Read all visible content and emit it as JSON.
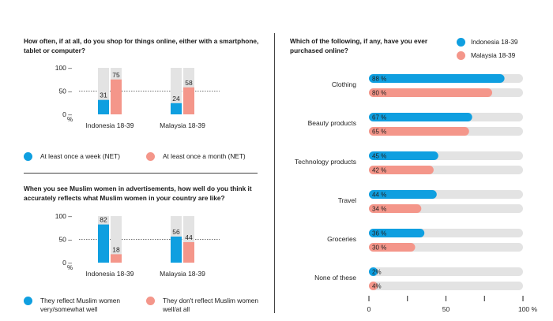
{
  "colors": {
    "indonesia": "#0f9fe0",
    "malaysia": "#f4968a",
    "track": "#e3e3e3"
  },
  "legend_markers": [
    "circle-marker",
    "circle-marker"
  ],
  "chart_data": [
    {
      "type": "bar",
      "title": "How often, if at all, do you shop for things online, either with a smartphone, tablet or computer?",
      "categories": [
        "Indonesia 18-39",
        "Malaysia 18-39"
      ],
      "ylim": [
        0,
        100
      ],
      "yticks": [
        "100",
        "50",
        "0"
      ],
      "yunit": "%",
      "series": [
        {
          "name": "At least once a week (NET)",
          "values": [
            31,
            24
          ]
        },
        {
          "name": "At least once a month (NET)",
          "values": [
            75,
            58
          ]
        }
      ],
      "legend": "bottom"
    },
    {
      "type": "bar",
      "title": "When you see Muslim women in advertisements, how well do you think it accurately reflects what Muslim women in your country are like?",
      "categories": [
        "Indonesia 18-39",
        "Malaysia 18-39"
      ],
      "ylim": [
        0,
        100
      ],
      "yticks": [
        "100",
        "50",
        "0"
      ],
      "yunit": "%",
      "series": [
        {
          "name": "They reflect Muslim women very/somewhat well",
          "values": [
            82,
            56
          ]
        },
        {
          "name": "They don't reflect Muslim women well/at all",
          "values": [
            18,
            44
          ]
        }
      ],
      "legend": "bottom"
    },
    {
      "type": "bar",
      "orientation": "horizontal",
      "title": "Which of the following, if any, have you ever purchased online?",
      "categories": [
        "Clothing",
        "Beauty products",
        "Technology products",
        "Travel",
        "Groceries",
        "None of these"
      ],
      "series": [
        {
          "name": "Indonesia 18-39",
          "values": [
            88,
            67,
            45,
            44,
            36,
            2
          ]
        },
        {
          "name": "Malaysia 18-39",
          "values": [
            80,
            65,
            42,
            34,
            30,
            4
          ]
        }
      ],
      "xlim": [
        0,
        100
      ],
      "xticks": [
        "0",
        "50",
        "100 %"
      ],
      "value_suffix": "%",
      "legend": "top-right"
    }
  ]
}
